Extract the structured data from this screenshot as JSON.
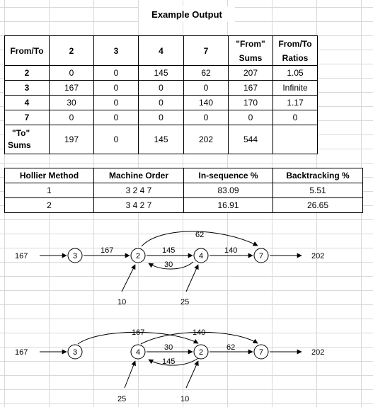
{
  "title": "Example Output",
  "from_to": {
    "corner": "From/To",
    "columns": [
      "2",
      "3",
      "4",
      "7"
    ],
    "from_sums_header": [
      "\"From\"",
      "Sums"
    ],
    "ratios_header": [
      "From/To",
      "Ratios"
    ],
    "rows": [
      {
        "label": "2",
        "values": [
          "0",
          "0",
          "145",
          "62"
        ],
        "from_sum": "207",
        "ratio": "1.05"
      },
      {
        "label": "3",
        "values": [
          "167",
          "0",
          "0",
          "0"
        ],
        "from_sum": "167",
        "ratio": "Infinite"
      },
      {
        "label": "4",
        "values": [
          "30",
          "0",
          "0",
          "140"
        ],
        "from_sum": "170",
        "ratio": "1.17"
      },
      {
        "label": "7",
        "values": [
          "0",
          "0",
          "0",
          "0"
        ],
        "from_sum": "0",
        "ratio": "0"
      }
    ],
    "to_sums_label": [
      "\"To\"",
      "Sums"
    ],
    "to_sums": [
      "197",
      "0",
      "145",
      "202"
    ],
    "total": "544",
    "total_ratio": ""
  },
  "methods": {
    "headers": [
      "Hollier Method",
      "Machine Order",
      "In-sequence %",
      "Backtracking %"
    ],
    "rows": [
      {
        "method": "1",
        "order": "3 2 4 7",
        "in_seq": "83.09",
        "backtrack": "5.51"
      },
      {
        "method": "2",
        "order": "3 4 2 7",
        "in_seq": "16.91",
        "backtrack": "26.65"
      }
    ]
  },
  "diagram1": {
    "nodes": [
      "3",
      "2",
      "4",
      "7"
    ],
    "input": "167",
    "output": "202",
    "flow_3_2": "167",
    "flow_2_4": "145",
    "flow_4_2": "30",
    "flow_4_7": "140",
    "flow_2_7": "62",
    "in_2": "10",
    "in_4": "25"
  },
  "diagram2": {
    "nodes": [
      "3",
      "4",
      "2",
      "7"
    ],
    "input": "167",
    "output": "202",
    "flow_3_2": "167",
    "flow_4_7": "140",
    "flow_4_2": "30",
    "flow_2_4": "145",
    "flow_2_7": "62",
    "in_4": "25",
    "in_2": "10"
  }
}
